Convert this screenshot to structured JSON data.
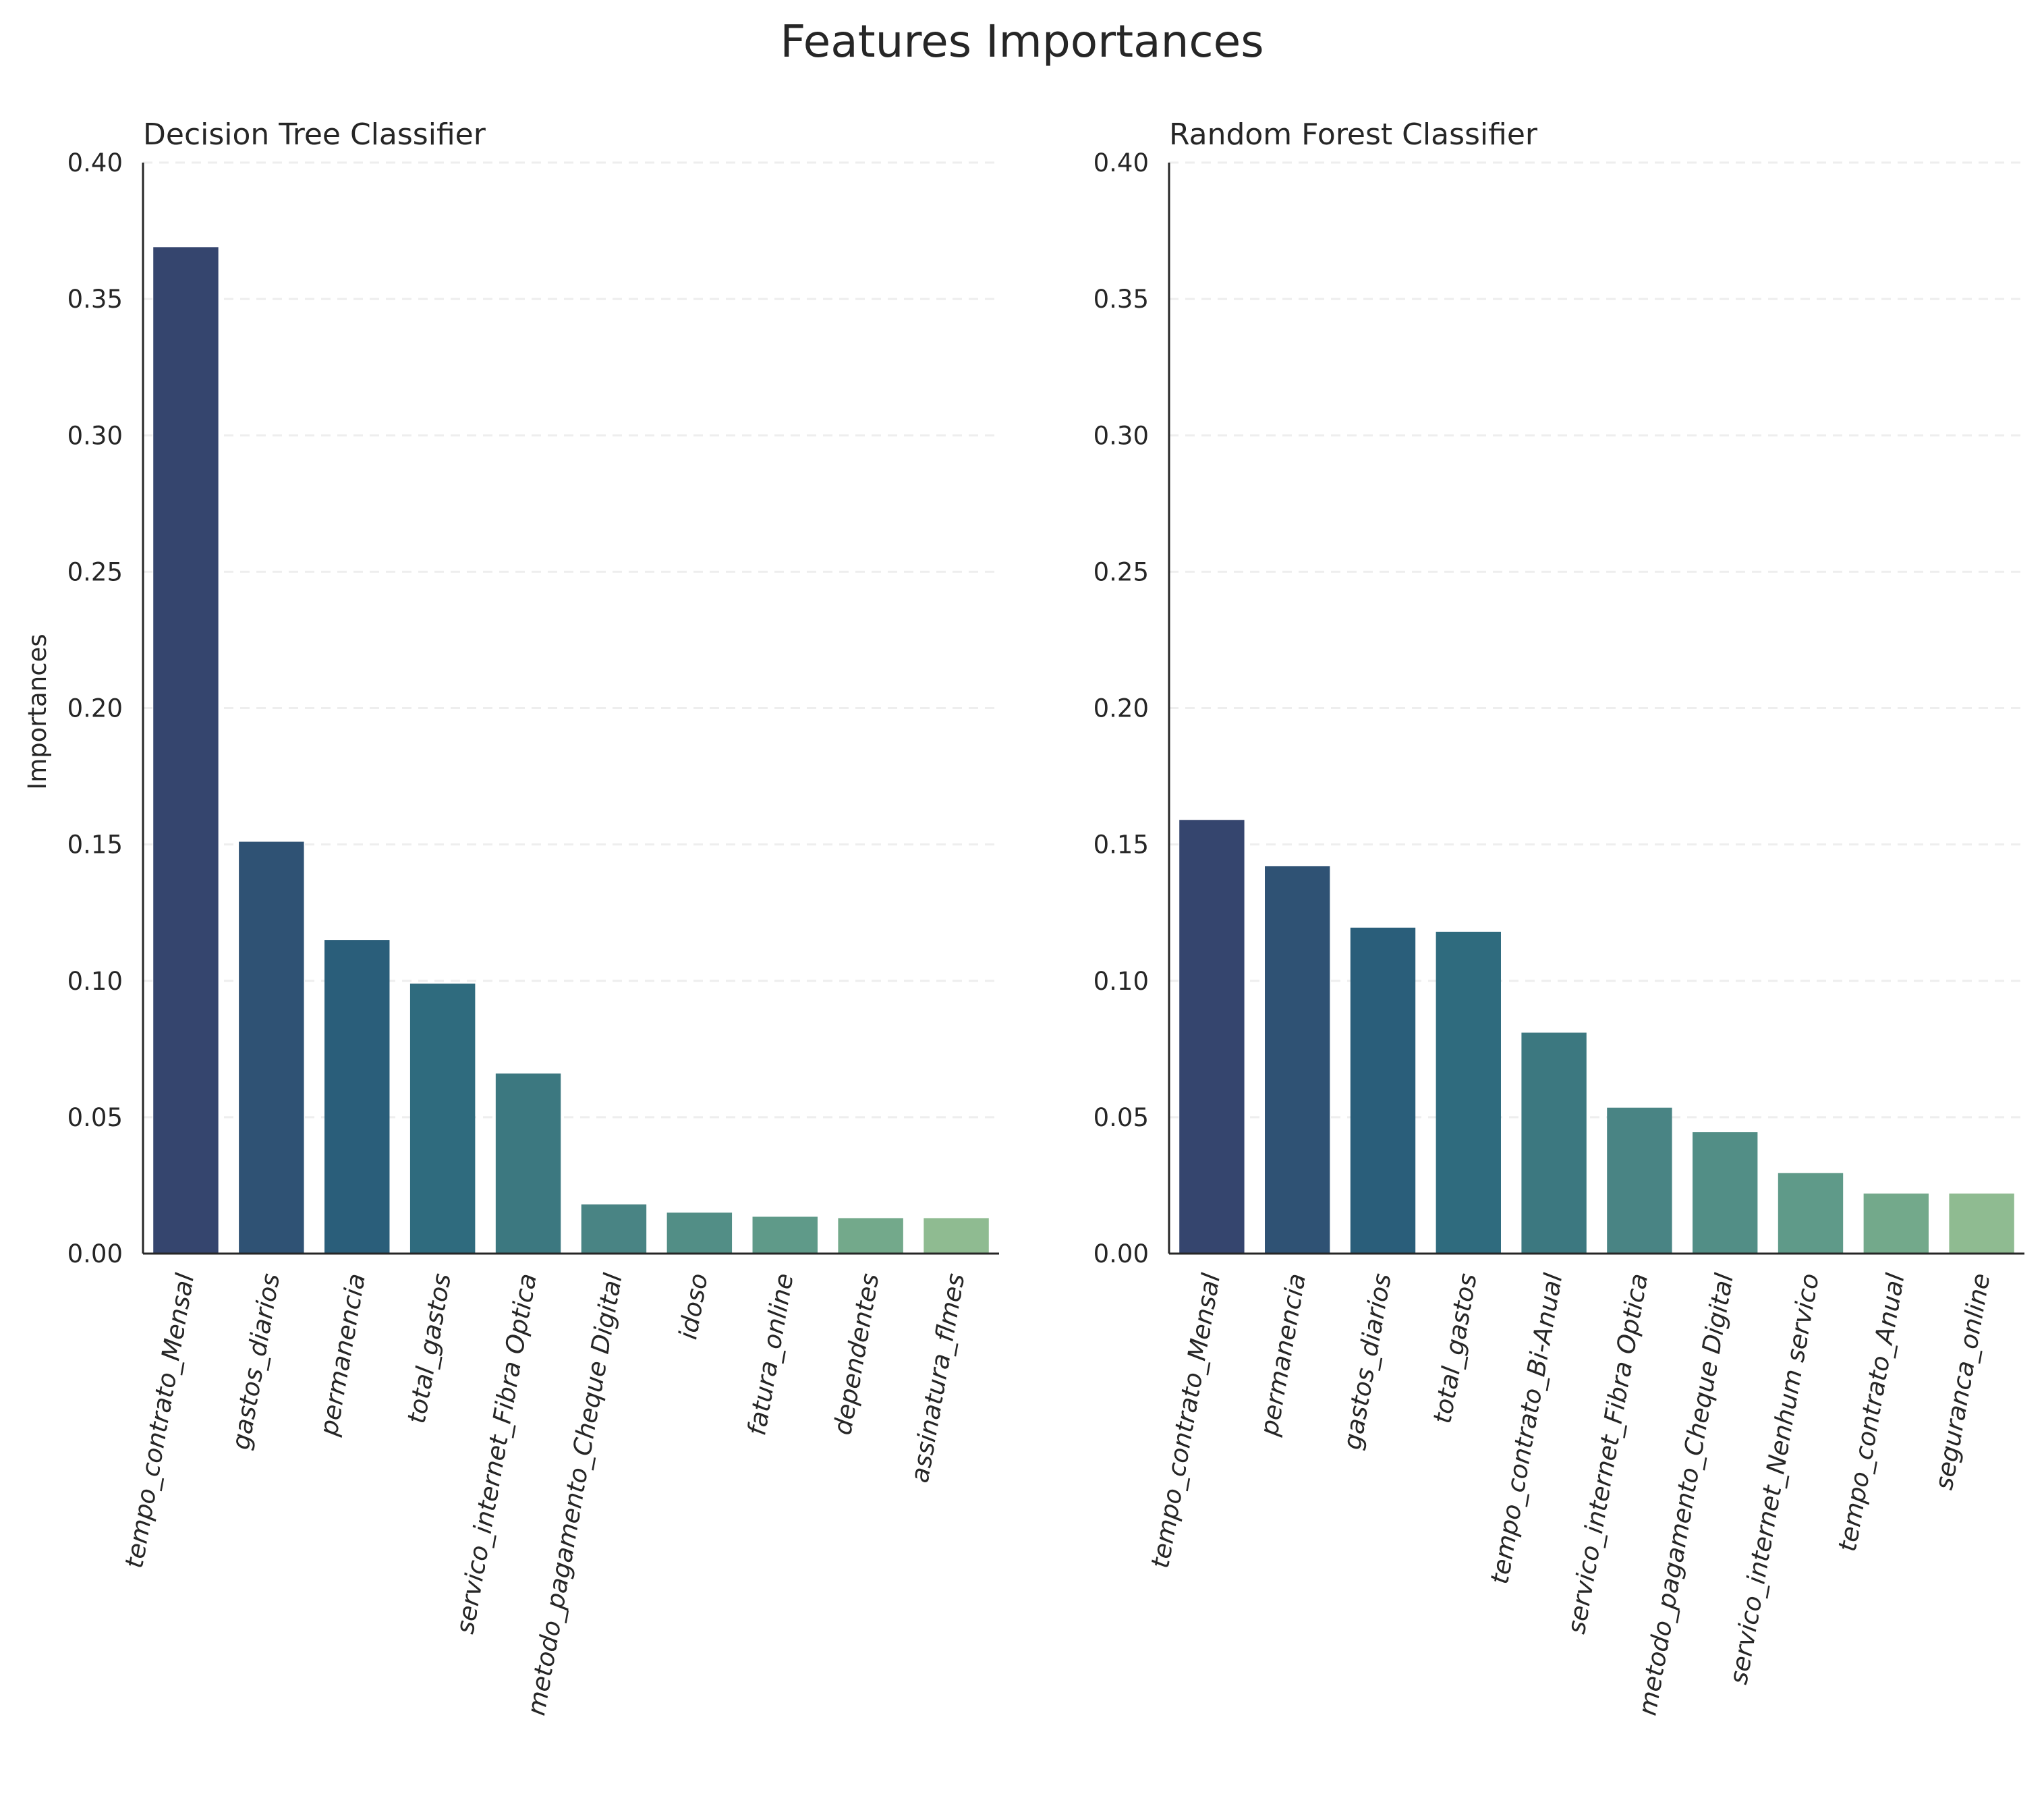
{
  "figure": {
    "title": "Features Importances"
  },
  "chart_data": [
    {
      "type": "bar",
      "title": "Decision Tree Classifier",
      "xlabel": "",
      "ylabel": "Importances",
      "ylim": [
        0,
        0.4
      ],
      "yticks": [
        "0.00",
        "0.05",
        "0.10",
        "0.15",
        "0.20",
        "0.25",
        "0.30",
        "0.35",
        "0.40"
      ],
      "grid": "horizontal dashed",
      "categories": [
        "tempo_contrato_Mensal",
        "gastos_diarios",
        "permanencia",
        "total_gastos",
        "servico_internet_Fibra Optica",
        "metodo_pagamento_Cheque Digital",
        "idoso",
        "fatura_online",
        "dependentes",
        "assinatura_flmes"
      ],
      "values": [
        0.369,
        0.151,
        0.115,
        0.099,
        0.066,
        0.018,
        0.015,
        0.0135,
        0.013,
        0.013
      ],
      "colors": [
        "#35456e",
        "#2f5274",
        "#2a5e7a",
        "#2f6b7e",
        "#3c7880",
        "#498484",
        "#528e86",
        "#5f9a89",
        "#73a98b",
        "#8fbb91"
      ]
    },
    {
      "type": "bar",
      "title": "Random Forest Classifier",
      "xlabel": "",
      "ylabel": "",
      "ylim": [
        0,
        0.4
      ],
      "yticks": [
        "0.00",
        "0.05",
        "0.10",
        "0.15",
        "0.20",
        "0.25",
        "0.30",
        "0.35",
        "0.40"
      ],
      "grid": "horizontal dashed",
      "categories": [
        "tempo_contrato_Mensal",
        "permanencia",
        "gastos_diarios",
        "total_gastos",
        "tempo_contrato_Bi-Anual",
        "servico_internet_Fibra Optica",
        "metodo_pagamento_Cheque Digital",
        "servico_internet_Nenhum servico",
        "tempo_contrato_Anual",
        "seguranca_online"
      ],
      "values": [
        0.159,
        0.142,
        0.1195,
        0.118,
        0.081,
        0.0535,
        0.0445,
        0.0295,
        0.022,
        0.022
      ],
      "colors": [
        "#35456e",
        "#2f5274",
        "#2a5e7a",
        "#2f6b7e",
        "#3c7880",
        "#498484",
        "#528e86",
        "#5f9a89",
        "#73a98b",
        "#8fbb91"
      ]
    }
  ]
}
